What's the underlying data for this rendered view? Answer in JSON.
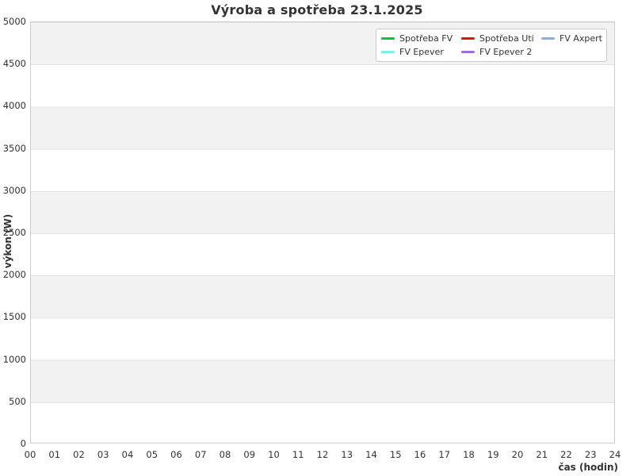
{
  "title": "Výroba a spotřeba 23.1.2025",
  "y_axis": {
    "label": "výkon (W)",
    "ticks": [
      "5000",
      "4500",
      "4000",
      "3500",
      "3000",
      "2500",
      "2000",
      "1500",
      "1000",
      "500",
      "0"
    ]
  },
  "x_axis": {
    "label": "čas (hodin)",
    "ticks": [
      "00",
      "01",
      "02",
      "03",
      "04",
      "05",
      "06",
      "07",
      "08",
      "09",
      "10",
      "11",
      "12",
      "13",
      "14",
      "15",
      "16",
      "17",
      "18",
      "19",
      "20",
      "21",
      "22",
      "23",
      "24"
    ]
  },
  "legend": {
    "items": [
      {
        "label": "Spotřeba FV",
        "color": "#00cc2a"
      },
      {
        "label": "Spotřeba Uti",
        "color": "#e01212"
      },
      {
        "label": "FV Axpert",
        "color": "#91afd6"
      },
      {
        "label": "FV Epever",
        "color": "#7ff0e8"
      },
      {
        "label": "FV Epever 2",
        "color": "#9b6fe0"
      }
    ]
  },
  "style_colors": {
    "band_gray": "#f2f2f2",
    "band_white": "#ffffff",
    "gridline": "#e3e3e3",
    "plot_border": "#cccccc",
    "text": "#333333"
  },
  "chart_data": {
    "type": "line",
    "title": "Výroba a spotřeba 23.1.2025",
    "xlabel": "čas (hodin)",
    "ylabel": "výkon (W)",
    "xlim": [
      0,
      24
    ],
    "ylim": [
      0,
      5000
    ],
    "x_tick_step": 1,
    "y_tick_step": 500,
    "grid": "horizontal alternating gray/white bands every 500, gridline at each 500 boundary, no vertical gridlines",
    "legend_position": "top-right inside plot, bordered box, 3 columns x 2 rows",
    "series": [
      {
        "name": "Spotřeba FV",
        "color": "#00cc2a",
        "x": [],
        "y": []
      },
      {
        "name": "Spotřeba Uti",
        "color": "#e01212",
        "x": [],
        "y": []
      },
      {
        "name": "FV Axpert",
        "color": "#91afd6",
        "x": [],
        "y": []
      },
      {
        "name": "FV Epever",
        "color": "#7ff0e8",
        "x": [],
        "y": []
      },
      {
        "name": "FV Epever 2",
        "color": "#9b6fe0",
        "x": [],
        "y": []
      }
    ]
  }
}
